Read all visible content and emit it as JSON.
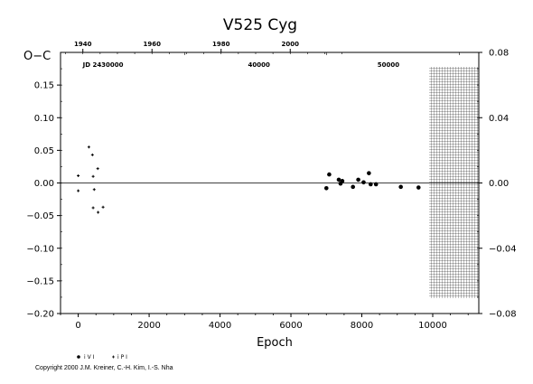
{
  "chart_data": {
    "type": "scatter",
    "title": "V525  Cyg",
    "ylabel": "O−C",
    "xlabel": "Epoch",
    "xlim": [
      -500,
      11300
    ],
    "ylim": [
      -0.2,
      0.2
    ],
    "x_ticks": [
      "0",
      "2000",
      "4000",
      "6000",
      "8000",
      "10000"
    ],
    "y_ticks_left": [
      "0.15",
      "0.10",
      "0.05",
      "0.00",
      "−0.05",
      "−0.10",
      "−0.15",
      "−0.20"
    ],
    "y_ticks_right": [
      "0.08",
      "0.04",
      "0.00",
      "−0.04",
      "−0.08"
    ],
    "top_year_ticks": [
      "1940",
      "1960",
      "1980",
      "2000"
    ],
    "jd_labels": [
      "JD 2430000",
      "40000",
      "50000"
    ],
    "series": [
      {
        "name": "i V I",
        "marker": "filled-circle",
        "points": [
          [
            7000,
            -0.008
          ],
          [
            7080,
            0.013
          ],
          [
            7350,
            0.005
          ],
          [
            7400,
            -0.001
          ],
          [
            7450,
            0.003
          ],
          [
            7750,
            -0.006
          ],
          [
            7900,
            0.005
          ],
          [
            8050,
            0.001
          ],
          [
            8200,
            0.015
          ],
          [
            8250,
            -0.002
          ],
          [
            8400,
            -0.002
          ],
          [
            9100,
            -0.006
          ],
          [
            9600,
            -0.007
          ]
        ]
      },
      {
        "name": "i P I",
        "marker": "small-plus",
        "points": [
          [
            0,
            0.011
          ],
          [
            0,
            -0.012
          ],
          [
            300,
            0.055
          ],
          [
            400,
            0.043
          ],
          [
            420,
            0.01
          ],
          [
            450,
            -0.01
          ],
          [
            420,
            -0.038
          ],
          [
            550,
            0.022
          ],
          [
            560,
            -0.045
          ],
          [
            700,
            -0.037
          ]
        ]
      }
    ],
    "hatched_region_x": [
      9900,
      11300
    ],
    "grid": false,
    "legend": "bottom-left"
  },
  "copyright": "Copyright 2000 J.M. Kreiner, C.-H. Kim, I.-S. Nha"
}
